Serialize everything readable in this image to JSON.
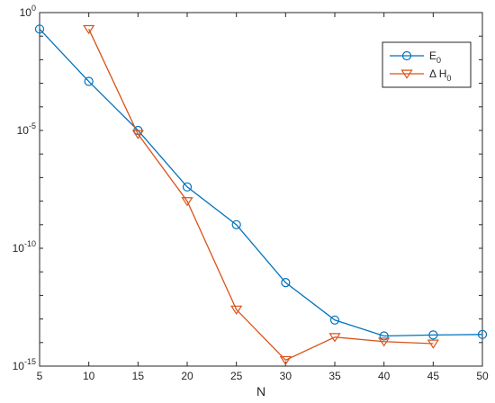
{
  "chart_data": {
    "type": "line",
    "title": "",
    "xlabel": "N",
    "ylabel": "",
    "x_scale": "linear",
    "y_scale": "log",
    "xlim": [
      5,
      50
    ],
    "ylim": [
      1e-15,
      1
    ],
    "x_ticks": [
      5,
      10,
      15,
      20,
      25,
      30,
      35,
      40,
      45,
      50
    ],
    "x_tick_labels": [
      "5",
      "10",
      "15",
      "20",
      "25",
      "30",
      "35",
      "40",
      "45",
      "50"
    ],
    "y_ticks": [
      {
        "value": 1e-15,
        "base": "10",
        "exp": "-15"
      },
      {
        "value": 1e-10,
        "base": "10",
        "exp": "-10"
      },
      {
        "value": 1e-05,
        "base": "10",
        "exp": "-5"
      },
      {
        "value": 1,
        "base": "10",
        "exp": "0"
      }
    ],
    "grid": false,
    "legend_position": "top-right",
    "series": [
      {
        "name": "E",
        "name_sub": "0",
        "color": "#0072BD",
        "marker": "circle",
        "x": [
          5,
          10,
          15,
          20,
          25,
          30,
          35,
          40,
          45,
          50
        ],
        "y": [
          0.2,
          0.0012,
          1e-05,
          4e-08,
          1e-09,
          3.5e-12,
          9e-14,
          1.9e-14,
          2.1e-14,
          2.2e-14
        ]
      },
      {
        "name": "Δ H",
        "name_sub": "0",
        "color": "#D95319",
        "marker": "triangle-down",
        "x": [
          10,
          15,
          20,
          25,
          30,
          35,
          40,
          45
        ],
        "y": [
          0.2,
          7e-06,
          1e-08,
          2.5e-13,
          1.8e-15,
          1.7e-14,
          1.1e-14,
          9e-15
        ]
      }
    ]
  }
}
